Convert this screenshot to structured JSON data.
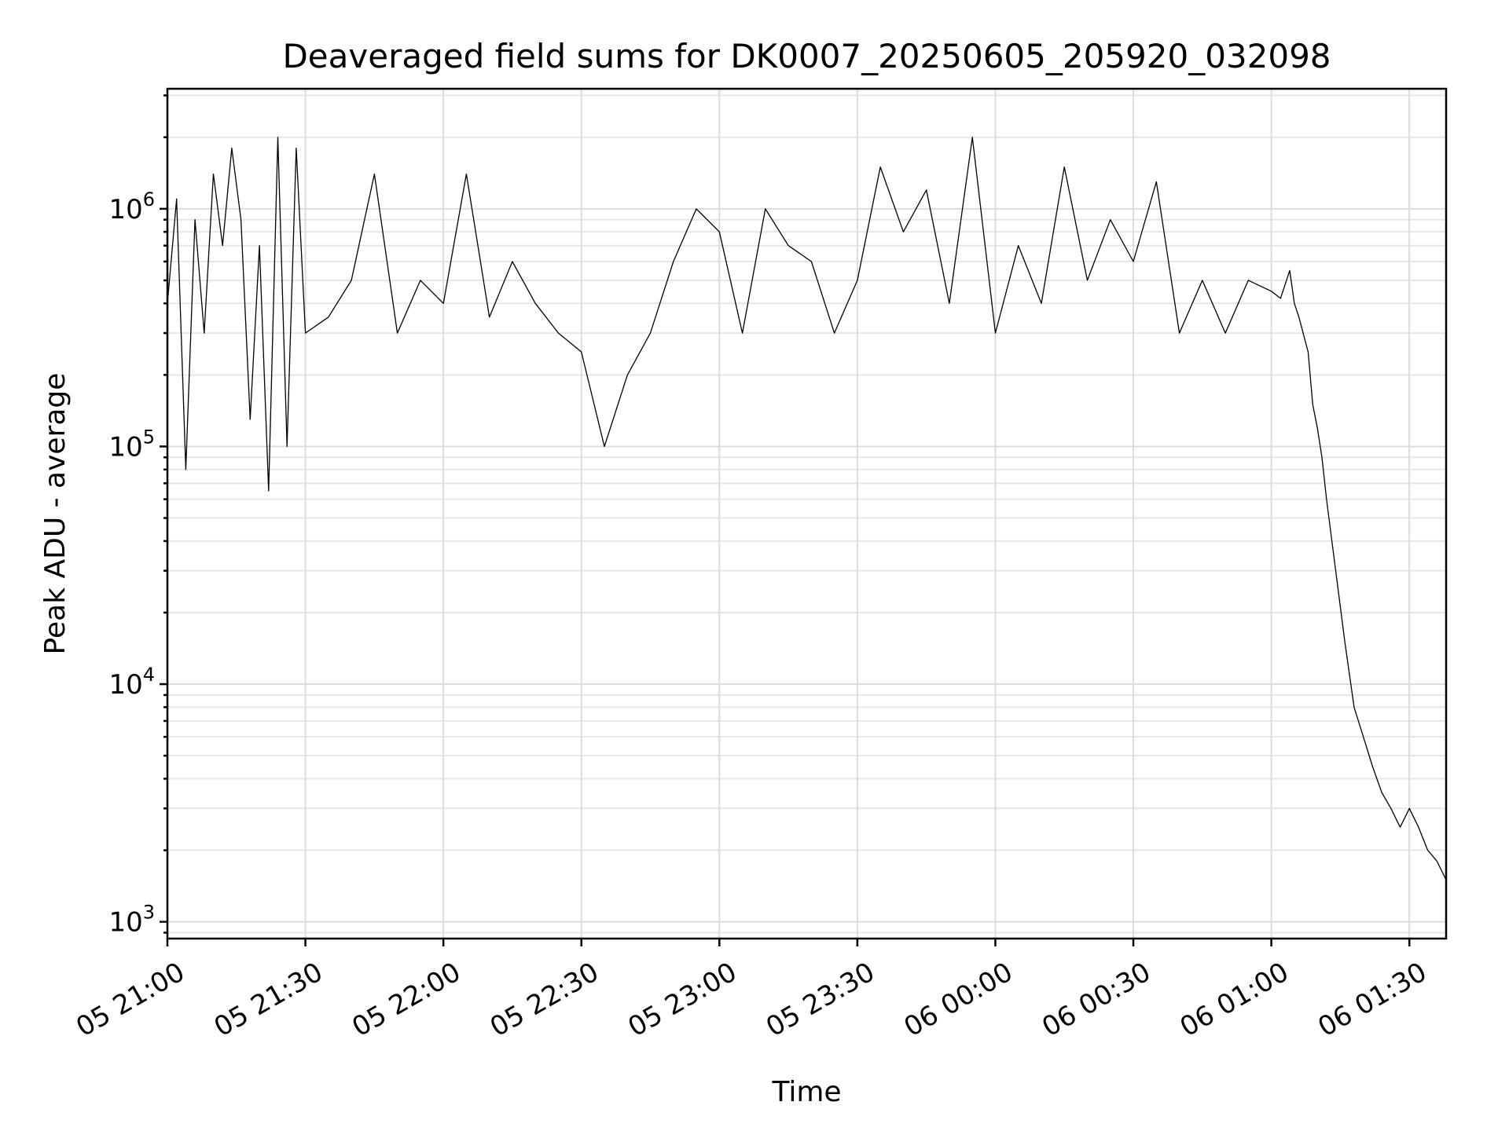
{
  "chart_data": {
    "type": "line",
    "title": "Deaveraged field sums for DK0007_20250605_205920_032098",
    "xlabel": "Time",
    "ylabel": "Peak ADU - average",
    "yscale": "log",
    "grid": true,
    "xlim": [
      "2025-06-05 21:00",
      "2025-06-06 01:38"
    ],
    "ylim": [
      850,
      3200000
    ],
    "xtick_values": [
      "2025-06-05 21:00",
      "2025-06-05 21:30",
      "2025-06-05 22:00",
      "2025-06-05 22:30",
      "2025-06-05 23:00",
      "2025-06-05 23:30",
      "2025-06-06 00:00",
      "2025-06-06 00:30",
      "2025-06-06 01:00",
      "2025-06-06 01:30"
    ],
    "xtick_labels": [
      "05 21:00",
      "05 21:30",
      "05 22:00",
      "05 22:30",
      "05 23:00",
      "05 23:30",
      "06 00:00",
      "06 00:30",
      "06 01:00",
      "06 01:30"
    ],
    "ytick_values": [
      1000,
      10000,
      100000,
      1000000
    ],
    "ytick_labels": [
      {
        "base": "10",
        "exp": "3"
      },
      {
        "base": "10",
        "exp": "4"
      },
      {
        "base": "10",
        "exp": "5"
      },
      {
        "base": "10",
        "exp": "6"
      }
    ],
    "series": [
      {
        "color": "#000000",
        "x": [
          "2025-06-05 21:00",
          "2025-06-05 21:02",
          "2025-06-05 21:04",
          "2025-06-05 21:06",
          "2025-06-05 21:08",
          "2025-06-05 21:10",
          "2025-06-05 21:12",
          "2025-06-05 21:14",
          "2025-06-05 21:16",
          "2025-06-05 21:18",
          "2025-06-05 21:20",
          "2025-06-05 21:22",
          "2025-06-05 21:24",
          "2025-06-05 21:26",
          "2025-06-05 21:28",
          "2025-06-05 21:30",
          "2025-06-05 21:35",
          "2025-06-05 21:40",
          "2025-06-05 21:45",
          "2025-06-05 21:50",
          "2025-06-05 21:55",
          "2025-06-05 22:00",
          "2025-06-05 22:05",
          "2025-06-05 22:10",
          "2025-06-05 22:15",
          "2025-06-05 22:20",
          "2025-06-05 22:25",
          "2025-06-05 22:30",
          "2025-06-05 22:35",
          "2025-06-05 22:40",
          "2025-06-05 22:45",
          "2025-06-05 22:50",
          "2025-06-05 22:55",
          "2025-06-05 23:00",
          "2025-06-05 23:05",
          "2025-06-05 23:10",
          "2025-06-05 23:15",
          "2025-06-05 23:20",
          "2025-06-05 23:25",
          "2025-06-05 23:30",
          "2025-06-05 23:35",
          "2025-06-05 23:40",
          "2025-06-05 23:45",
          "2025-06-05 23:50",
          "2025-06-05 23:55",
          "2025-06-06 00:00",
          "2025-06-06 00:05",
          "2025-06-06 00:10",
          "2025-06-06 00:15",
          "2025-06-06 00:20",
          "2025-06-06 00:25",
          "2025-06-06 00:30",
          "2025-06-06 00:35",
          "2025-06-06 00:40",
          "2025-06-06 00:45",
          "2025-06-06 00:50",
          "2025-06-06 00:55",
          "2025-06-06 01:00",
          "2025-06-06 01:02",
          "2025-06-06 01:04",
          "2025-06-06 01:05",
          "2025-06-06 01:06",
          "2025-06-06 01:08",
          "2025-06-06 01:09",
          "2025-06-06 01:10",
          "2025-06-06 01:11",
          "2025-06-06 01:12",
          "2025-06-06 01:14",
          "2025-06-06 01:16",
          "2025-06-06 01:18",
          "2025-06-06 01:20",
          "2025-06-06 01:22",
          "2025-06-06 01:24",
          "2025-06-06 01:26",
          "2025-06-06 01:28",
          "2025-06-06 01:30",
          "2025-06-06 01:32",
          "2025-06-06 01:34",
          "2025-06-06 01:36",
          "2025-06-06 01:38"
        ],
        "y": [
          400000,
          1100000,
          80000,
          900000,
          300000,
          1400000,
          700000,
          1800000,
          900000,
          130000,
          700000,
          65000,
          2000000,
          100000,
          1800000,
          300000,
          350000,
          500000,
          1400000,
          300000,
          500000,
          400000,
          1400000,
          350000,
          600000,
          400000,
          300000,
          250000,
          100000,
          200000,
          300000,
          600000,
          1000000,
          800000,
          300000,
          1000000,
          700000,
          600000,
          300000,
          500000,
          1500000,
          800000,
          1200000,
          400000,
          2000000,
          300000,
          700000,
          400000,
          1500000,
          500000,
          900000,
          600000,
          1300000,
          300000,
          500000,
          300000,
          500000,
          450000,
          420000,
          550000,
          400000,
          350000,
          250000,
          150000,
          120000,
          90000,
          60000,
          30000,
          15000,
          8000,
          6000,
          4500,
          3500,
          3000,
          2500,
          3000,
          2500,
          2000,
          1800,
          1500
        ]
      }
    ]
  }
}
